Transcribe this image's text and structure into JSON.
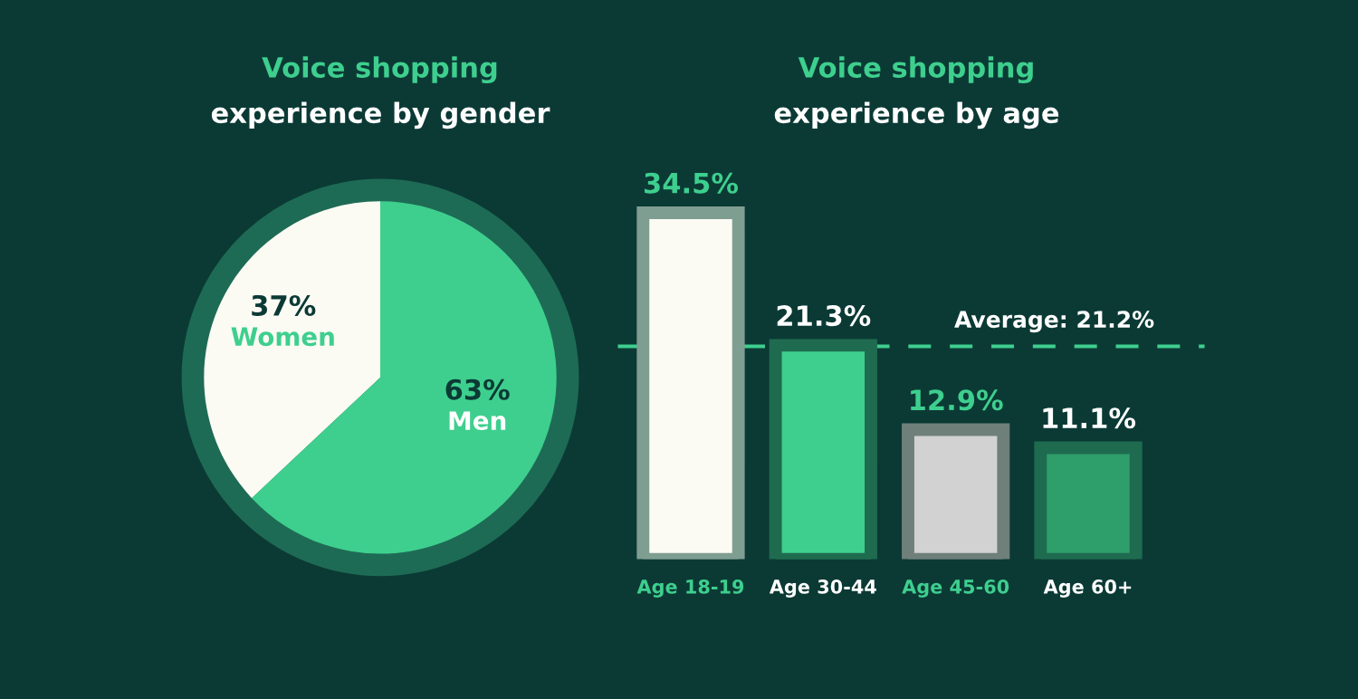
{
  "chart_data": [
    {
      "type": "pie",
      "title": "Voice shopping",
      "subtitle": "experience by gender",
      "categories": [
        "Women",
        "Men"
      ],
      "values": [
        37,
        63
      ],
      "value_labels": [
        "37%",
        "63%"
      ],
      "colors": [
        "#fbfbf3",
        "#3ecf8e"
      ]
    },
    {
      "type": "bar",
      "title": "Voice shopping",
      "subtitle": "experience by age",
      "categories": [
        "Age 18-19",
        "Age 30-44",
        "Age 45-60",
        "Age 60+"
      ],
      "values": [
        34.5,
        21.3,
        12.9,
        11.1
      ],
      "value_labels": [
        "34.5%",
        "21.3%",
        "12.9%",
        "11.1%"
      ],
      "colors": [
        "#fbfbf3",
        "#3ecf8e",
        "#d2d2d2",
        "#2e9e6a"
      ],
      "ref_lines": [
        {
          "axis": "y",
          "value": 21.2,
          "label": "Average: 21.2%",
          "color": "#3ecf8e",
          "line_style": "dashed"
        }
      ]
    }
  ]
}
